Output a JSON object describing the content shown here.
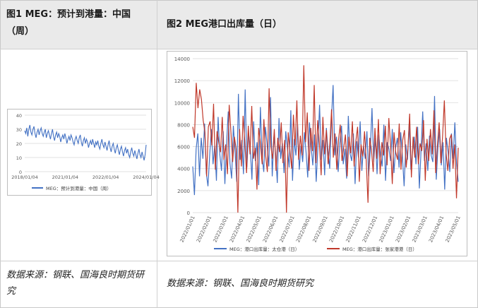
{
  "figure1": {
    "title": "图1 MEG：预计到港量：中国（周）",
    "source": "数据来源：钢联、国海良时期货研究"
  },
  "figure2": {
    "title": "图2 MEG港口出库量（日）",
    "source": "数据来源：钢联、国海良时期货研究"
  },
  "chart_data": [
    {
      "type": "line",
      "title": "",
      "ylim": [
        0,
        40
      ],
      "yticks": [
        "0",
        "10",
        "20",
        "30",
        "40"
      ],
      "xticks": [
        "2018/01/04",
        "2021/01/04",
        "2022/01/04",
        "2024/01/04"
      ],
      "grid": "horizontal",
      "legend_position": "bottom",
      "series": [
        {
          "name": "MEG：预计到港量：中国（周）",
          "color": "#4472c4",
          "values": [
            29,
            27,
            31,
            25,
            30,
            33,
            28,
            26,
            30,
            32,
            27,
            24,
            28,
            30,
            26,
            29,
            31,
            27,
            25,
            28,
            30,
            24,
            27,
            29,
            26,
            23,
            27,
            30,
            25,
            22,
            26,
            28,
            24,
            27,
            25,
            21,
            24,
            26,
            23,
            27,
            24,
            20,
            23,
            25,
            22,
            26,
            24,
            21,
            19,
            23,
            25,
            22,
            20,
            24,
            26,
            21,
            18,
            22,
            24,
            20,
            23,
            21,
            17,
            20,
            22,
            19,
            23,
            20,
            17,
            21,
            19,
            22,
            18,
            16,
            20,
            23,
            19,
            17,
            21,
            18,
            15,
            19,
            22,
            17,
            14,
            18,
            20,
            16,
            13,
            17,
            19,
            15,
            12,
            16,
            18,
            14,
            11,
            15,
            17,
            13,
            16,
            12,
            10,
            14,
            17,
            13,
            11,
            15,
            12,
            9,
            13,
            16,
            12,
            10,
            14,
            11,
            8,
            12,
            19
          ]
        }
      ]
    },
    {
      "type": "line",
      "title": "",
      "ylim": [
        0,
        14000
      ],
      "yticks": [
        "0",
        "2000",
        "4000",
        "6000",
        "8000",
        "10000",
        "12000",
        "14000"
      ],
      "xticks": [
        "2022/01/01",
        "2022/02/01",
        "2022/03/01",
        "2022/04/01",
        "2022/05/01",
        "2022/06/01",
        "2022/07/01",
        "2022/08/01",
        "2022/09/01",
        "2022/10/01",
        "2022/11/01",
        "2022/12/01",
        "2023/01/01",
        "2023/02/01",
        "2023/03/01",
        "2023/04/01",
        "2023/05/01"
      ],
      "grid": "horizontal",
      "legend_position": "bottom",
      "series": [
        {
          "name": "MEG：港口出库量：太仓港（日）",
          "color": "#4472c4",
          "values": [
            4200,
            1600,
            5800,
            7200,
            3300,
            6800,
            4900,
            8100,
            3600,
            2400,
            5200,
            7600,
            4400,
            6100,
            2900,
            8700,
            5300,
            3800,
            7400,
            2600,
            6300,
            9200,
            4500,
            3100,
            7900,
            5600,
            2800,
            10800,
            4800,
            6600,
            3500,
            11200,
            4100,
            7200,
            5900,
            3000,
            8300,
            4700,
            6400,
            2500,
            9600,
            5100,
            3700,
            7800,
            6100,
            4200,
            10500,
            3300,
            6900,
            5400,
            2700,
            8600,
            4900,
            6300,
            3600,
            7400,
            5800,
            4100,
            9300,
            2900,
            6700,
            5200,
            8000,
            3900,
            6100,
            4600,
            7300,
            5500,
            3200,
            8200,
            6000,
            4300,
            7100,
            2800,
            5900,
            9800,
            4800,
            6600,
            3400,
            7700,
            5600,
            4000,
            8400,
            11600,
            5200,
            6900,
            3700,
            6300,
            7900,
            4400,
            5800,
            3100,
            8800,
            5400,
            4700,
            7200,
            2600,
            6500,
            5000,
            8300,
            3800,
            6100,
            4900,
            7400,
            3300,
            5700,
            9500,
            4600,
            6800,
            3500,
            7100,
            5300,
            4200,
            8000,
            2900,
            6400,
            5800,
            4700,
            7600,
            3600,
            5900,
            6800,
            4100,
            7300,
            5100,
            2400,
            6200,
            4800,
            8100,
            3900,
            5500,
            6900,
            4400,
            7800,
            2200,
            5600,
            9200,
            4700,
            6300,
            3800,
            7000,
            5200,
            4600,
            10600,
            3000,
            5900,
            7600,
            4300,
            6400,
            2100,
            6800,
            5500,
            3700,
            7200,
            4900,
            8200,
            4500,
            2800
          ]
        },
        {
          "name": "MEG：港口出库量：张家港港（日）",
          "color": "#c0392b",
          "values": [
            7800,
            6800,
            11800,
            9500,
            11200,
            10300,
            8400,
            7300,
            3300,
            7800,
            8300,
            6100,
            9900,
            3900,
            7400,
            6400,
            5500,
            8700,
            4800,
            6200,
            3500,
            9800,
            7300,
            4600,
            6900,
            5800,
            0,
            7600,
            4200,
            8800,
            6400,
            3600,
            7900,
            5300,
            9700,
            4900,
            5900,
            2100,
            7700,
            6300,
            4400,
            8500,
            5200,
            3700,
            11300,
            6000,
            4900,
            7600,
            3800,
            6800,
            5500,
            8200,
            4500,
            6600,
            0,
            7300,
            5700,
            4000,
            8900,
            6100,
            10200,
            4800,
            7000,
            5200,
            13400,
            6400,
            9100,
            3800,
            7700,
            5600,
            11600,
            4500,
            8400,
            6200,
            3400,
            8700,
            5300,
            7500,
            4400,
            6300,
            9400,
            5000,
            7200,
            3900,
            6600,
            8000,
            4700,
            5900,
            7100,
            3300,
            6900,
            5400,
            8300,
            4200,
            6500,
            7800,
            2800,
            6200,
            5100,
            7400,
            4600,
            900,
            6800,
            5700,
            3700,
            7700,
            4900,
            8500,
            3500,
            6400,
            5200,
            7900,
            4300,
            8600,
            6100,
            2600,
            7300,
            5500,
            4800,
            8100,
            3900,
            6600,
            7500,
            4100,
            5800,
            9000,
            3200,
            6900,
            5000,
            7800,
            4400,
            6300,
            5600,
            8400,
            2900,
            6700,
            4700,
            7600,
            5300,
            9300,
            3600,
            6100,
            8200,
            4500,
            7000,
            10200,
            5400,
            3800,
            6700,
            7100,
            4000,
            6200,
            1300,
            5900
          ]
        }
      ]
    }
  ]
}
